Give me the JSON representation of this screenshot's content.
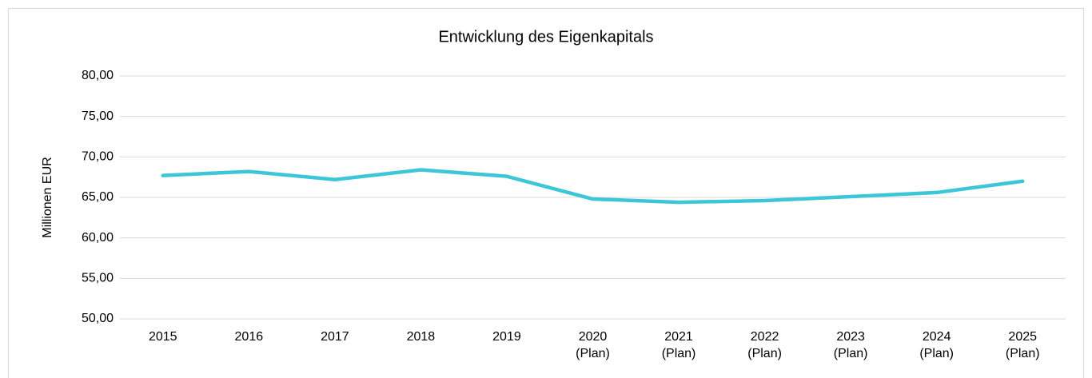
{
  "chart_data": {
    "type": "line",
    "title": "Entwicklung des Eigenkapitals",
    "y_label": "Millionen EUR",
    "categories": [
      "2015",
      "2016",
      "2017",
      "2018",
      "2019",
      "2020\n(Plan)",
      "2021\n(Plan)",
      "2022\n(Plan)",
      "2023\n(Plan)",
      "2024\n(Plan)",
      "2025\n(Plan)"
    ],
    "series": [
      {
        "color": "#3cc6d8",
        "values": [
          67.7,
          68.2,
          67.2,
          68.4,
          67.6,
          64.8,
          64.4,
          64.6,
          65.1,
          65.6,
          67.0
        ]
      }
    ],
    "ylim": [
      50,
      80
    ],
    "yticks": [
      {
        "value": 50,
        "label": "50,00"
      },
      {
        "value": 55,
        "label": "55,00"
      },
      {
        "value": 60,
        "label": "60,00"
      },
      {
        "value": 65,
        "label": "65,00"
      },
      {
        "value": 70,
        "label": "70,00"
      },
      {
        "value": 75,
        "label": "75,00"
      },
      {
        "value": 80,
        "label": "80,00"
      }
    ],
    "grid": true
  }
}
